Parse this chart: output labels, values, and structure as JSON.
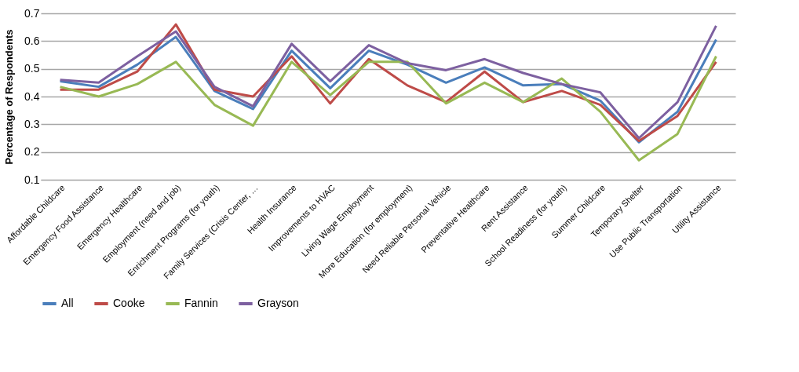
{
  "chart_data": {
    "type": "line",
    "ylabel": "Percentage of Respondents",
    "categories": [
      "Affordable Childcare",
      "Emergency Food Assistance",
      "Emergency Healthcare",
      "Employment (need and job)",
      "Enrichment Programs (for youth)",
      "Family Services (Crisis Center, …",
      "Health Insurance",
      "Improvements to HVAC",
      "Living Wage Employment",
      "More Education (for employment)",
      "Need Reliable Personal Vehicle",
      "Preventative Healthcare",
      "Rent Assistance",
      "School Readiness (for youth)",
      "Summer Childcare",
      "Temporary Shelter",
      "Use Public Transportation",
      "Utility Assistance"
    ],
    "series": [
      {
        "name": "All",
        "color": "#4a7ebb",
        "values": [
          0.455,
          0.435,
          0.515,
          0.615,
          0.42,
          0.355,
          0.565,
          0.43,
          0.565,
          0.515,
          0.45,
          0.505,
          0.44,
          0.445,
          0.385,
          0.235,
          0.345,
          0.605
        ]
      },
      {
        "name": "Cooke",
        "color": "#be4b48",
        "values": [
          0.425,
          0.425,
          0.49,
          0.66,
          0.425,
          0.4,
          0.545,
          0.375,
          0.535,
          0.44,
          0.38,
          0.49,
          0.38,
          0.42,
          0.37,
          0.24,
          0.33,
          0.525
        ]
      },
      {
        "name": "Fannin",
        "color": "#98b954",
        "values": [
          0.435,
          0.4,
          0.445,
          0.525,
          0.37,
          0.295,
          0.525,
          0.405,
          0.525,
          0.525,
          0.375,
          0.45,
          0.38,
          0.465,
          0.345,
          0.17,
          0.265,
          0.545
        ]
      },
      {
        "name": "Grayson",
        "color": "#7d60a0",
        "values": [
          0.46,
          0.45,
          0.545,
          0.635,
          0.435,
          0.365,
          0.59,
          0.455,
          0.585,
          0.52,
          0.495,
          0.535,
          0.485,
          0.445,
          0.415,
          0.25,
          0.38,
          0.655
        ]
      }
    ],
    "ylim": [
      0.1,
      0.7
    ],
    "yticks": [
      0.1,
      0.2,
      0.3,
      0.4,
      0.5,
      0.6,
      0.7
    ],
    "grid": "y",
    "legend": "bottom",
    "marker": "none",
    "line_style": "solid"
  }
}
